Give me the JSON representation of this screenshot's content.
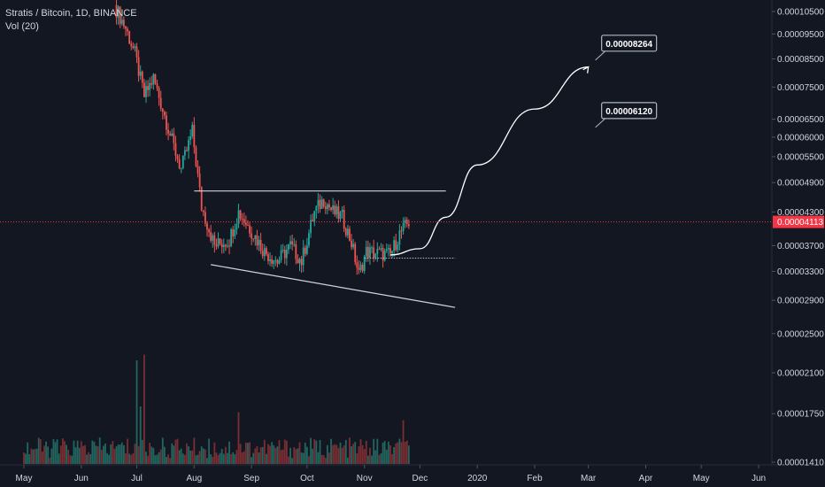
{
  "legend": {
    "symbol_line": "Stratis / Bitcoin, 1D, BINANCE",
    "volume_line": "Vol (20)"
  },
  "chart_data": {
    "type": "candlestick",
    "symbol": "Stratis / Bitcoin",
    "interval": "1D",
    "exchange": "BINANCE",
    "x_ticks": [
      "May",
      "Jun",
      "Jul",
      "Aug",
      "Sep",
      "Oct",
      "Nov",
      "Dec",
      "2020",
      "Feb",
      "Mar",
      "Apr",
      "May",
      "Jun"
    ],
    "y_ticks": [
      "0.00010500",
      "0.00009500",
      "0.00008500",
      "0.00007500",
      "0.00006500",
      "0.00006000",
      "0.00005500",
      "0.00004900",
      "0.00004300",
      "0.00003700",
      "0.00003300",
      "0.00002900",
      "0.00002500",
      "0.00002100",
      "0.00001750",
      "0.00001410"
    ],
    "y_scale": "log",
    "grid": false,
    "last_price": "0.00004113",
    "last_price_color": "#f23645",
    "up_color": "#26a69a",
    "down_color": "#ef5350",
    "price_path": [
      {
        "date": "2019-06-20",
        "close": 0.000106
      },
      {
        "date": "2019-06-25",
        "close": 9.75e-05
      },
      {
        "date": "2019-06-30",
        "close": 8.7e-05
      },
      {
        "date": "2019-07-05",
        "close": 7.2e-05
      },
      {
        "date": "2019-07-10",
        "close": 7.8e-05
      },
      {
        "date": "2019-07-15",
        "close": 6.8e-05
      },
      {
        "date": "2019-07-20",
        "close": 5.9e-05
      },
      {
        "date": "2019-07-25",
        "close": 5.2e-05
      },
      {
        "date": "2019-07-31",
        "close": 6.15e-05
      },
      {
        "date": "2019-08-05",
        "close": 4.4e-05
      },
      {
        "date": "2019-08-12",
        "close": 3.7e-05
      },
      {
        "date": "2019-08-20",
        "close": 3.8e-05
      },
      {
        "date": "2019-08-25",
        "close": 4.3e-05
      },
      {
        "date": "2019-09-01",
        "close": 3.95e-05
      },
      {
        "date": "2019-09-08",
        "close": 3.6e-05
      },
      {
        "date": "2019-09-15",
        "close": 3.45e-05
      },
      {
        "date": "2019-09-22",
        "close": 3.7e-05
      },
      {
        "date": "2019-09-28",
        "close": 3.45e-05
      },
      {
        "date": "2019-10-05",
        "close": 4.3e-05
      },
      {
        "date": "2019-10-10",
        "close": 4.55e-05
      },
      {
        "date": "2019-10-15",
        "close": 4.3e-05
      },
      {
        "date": "2019-10-20",
        "close": 4.2e-05
      },
      {
        "date": "2019-10-25",
        "close": 3.75e-05
      },
      {
        "date": "2019-10-29",
        "close": 3.25e-05
      },
      {
        "date": "2019-11-02",
        "close": 3.6e-05
      },
      {
        "date": "2019-11-10",
        "close": 3.57e-05
      },
      {
        "date": "2019-11-15",
        "close": 3.55e-05
      },
      {
        "date": "2019-11-20",
        "close": 3.9e-05
      },
      {
        "date": "2019-11-25",
        "close": 4.11e-05
      }
    ],
    "volume": [
      {
        "date": "2019-07-01",
        "value": 0.9
      },
      {
        "date": "2019-07-03",
        "value": 0.5
      },
      {
        "date": "2019-07-05",
        "value": 0.95
      },
      {
        "date": "2019-08-25",
        "value": 0.45
      },
      {
        "date": "2019-11-22",
        "value": 0.38
      }
    ],
    "annotations": {
      "resistance": {
        "from": "2019-08-01",
        "to": "2019-12-15",
        "price": 4.72e-05
      },
      "support_trend": {
        "from_date": "2019-08-10",
        "from_price": 3.4e-05,
        "to_date": "2019-12-20",
        "to_price": 2.81e-05
      },
      "neckline": {
        "from": "2019-11-01",
        "to": "2019-12-20",
        "price": 3.5e-05
      },
      "projection_path": [
        {
          "date": "2019-11-15",
          "price": 3.55e-05
        },
        {
          "date": "2019-12-01",
          "price": 3.65e-05
        },
        {
          "date": "2019-12-15",
          "price": 4.2e-05
        },
        {
          "date": "2020-01-01",
          "price": 5.3e-05
        },
        {
          "date": "2020-02-01",
          "price": 6.8e-05
        },
        {
          "date": "2020-03-01",
          "price": 8.2e-05
        }
      ],
      "callouts": [
        {
          "label": "0.00008264",
          "date": "2020-03-01",
          "price": 8.26e-05
        },
        {
          "label": "0.00006120",
          "date": "2020-03-01",
          "price": 6.12e-05
        }
      ]
    }
  }
}
